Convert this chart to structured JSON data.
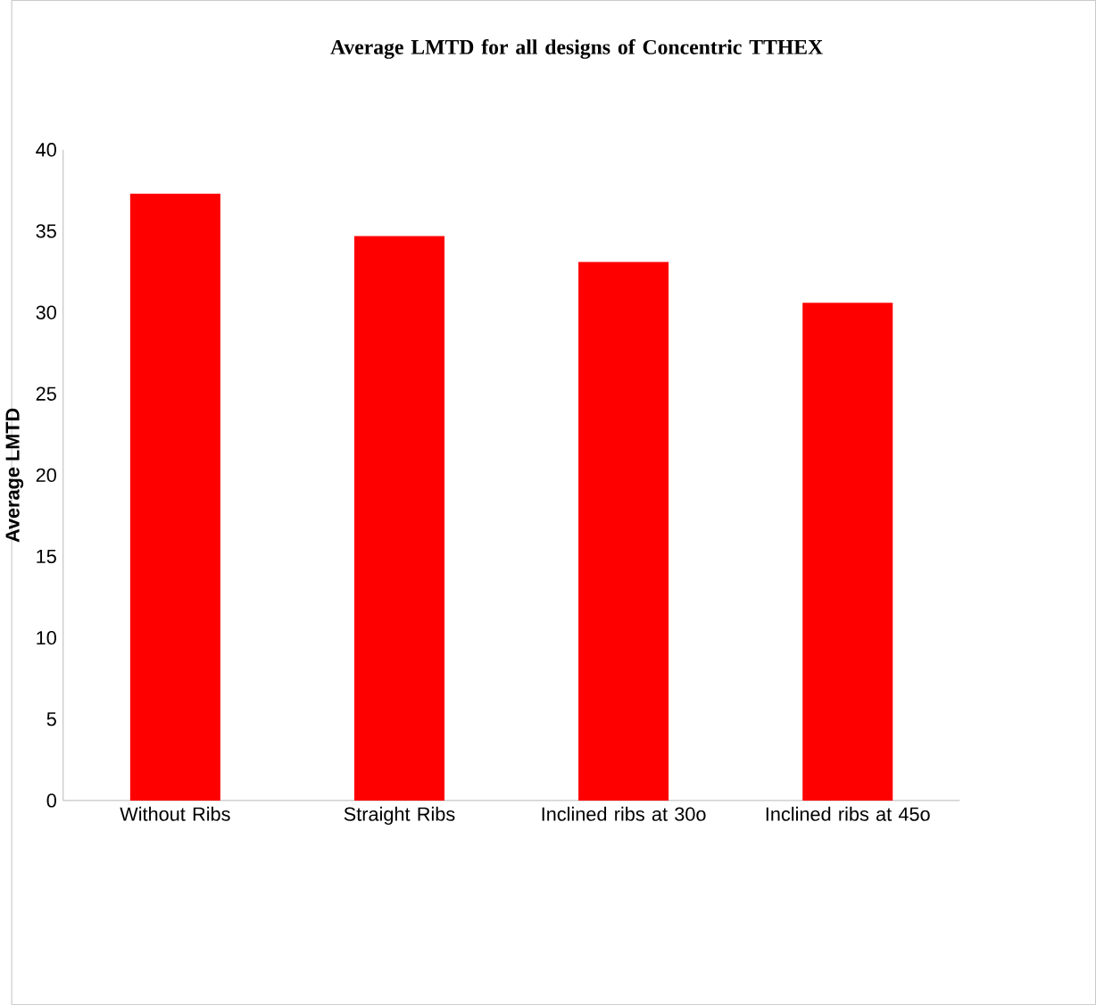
{
  "chart_data": {
    "type": "bar",
    "title": "Average LMTD for all designs of Concentric TTHEX",
    "ylabel": "Average LMTD",
    "categories": [
      "Without Ribs",
      "Straight Ribs",
      "Inclined ribs at 30o",
      "Inclined ribs at 45o"
    ],
    "values": [
      37.3,
      34.7,
      33.1,
      30.6
    ],
    "color": "#ff0000",
    "ylim": [
      0,
      40
    ],
    "yticks": [
      0,
      5,
      10,
      15,
      20,
      25,
      30,
      35,
      40
    ],
    "grid": false
  }
}
